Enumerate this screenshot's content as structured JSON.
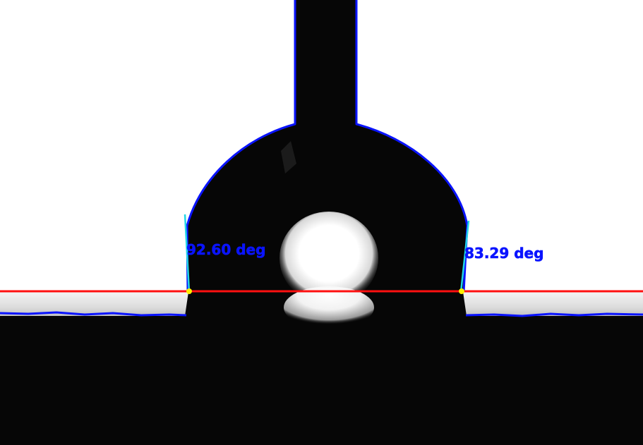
{
  "measurement": {
    "left_angle_text": "92.60 deg",
    "right_angle_text": "83.29 deg"
  },
  "colors": {
    "background": "#ffffff",
    "sample": "#060606",
    "substrate_band": "#e4e4e4",
    "highlight": "#ffffff",
    "contour": "#0a14ff",
    "baseline": "#ff1010",
    "tangent": "#22d6e6",
    "contact_point": "#ffee00",
    "label": "#0a14ff"
  }
}
